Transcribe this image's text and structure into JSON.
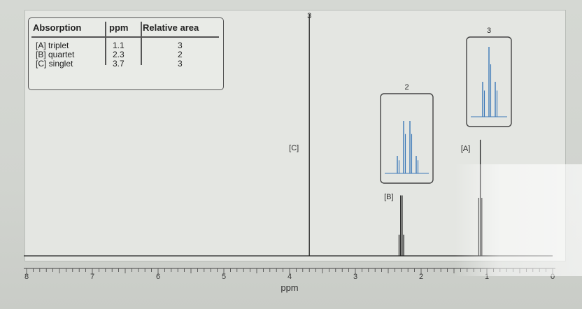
{
  "table": {
    "headers": [
      "Absorption",
      "ppm",
      "Relative area"
    ],
    "rows": [
      [
        "[A] triplet",
        "1.1",
        "3"
      ],
      [
        "[B] quartet",
        "2.3",
        "2"
      ],
      [
        "[C] singlet",
        "3.7",
        "3"
      ]
    ]
  },
  "chart_data": {
    "type": "line",
    "xlabel": "ppm",
    "xlim": [
      8,
      0
    ],
    "x_reversed": true,
    "xticks": [
      8,
      7,
      6,
      5,
      4,
      3,
      2,
      1,
      0
    ],
    "peaks": [
      {
        "label": "[C]",
        "multiplicity": "singlet",
        "ppm": 3.7,
        "relative_area": 3,
        "height_label": "3",
        "height": 1.0
      },
      {
        "label": "[B]",
        "multiplicity": "quartet",
        "ppm": 2.3,
        "relative_area": 2,
        "height_label": "2",
        "height": 0.25
      },
      {
        "label": "[A]",
        "multiplicity": "triplet",
        "ppm": 1.1,
        "relative_area": 3,
        "height_label": "3",
        "height": 0.48
      }
    ],
    "insets": [
      {
        "peak": "[B]",
        "label": "2",
        "lines": [
          0.25,
          0.75,
          0.75,
          0.25
        ]
      },
      {
        "peak": "[A]",
        "label": "3",
        "lines": [
          0.5,
          1.0,
          0.5
        ]
      }
    ]
  },
  "colors": {
    "spectrum": "#222222",
    "inset_trace": "#3b78b8",
    "frame": "#444444"
  }
}
